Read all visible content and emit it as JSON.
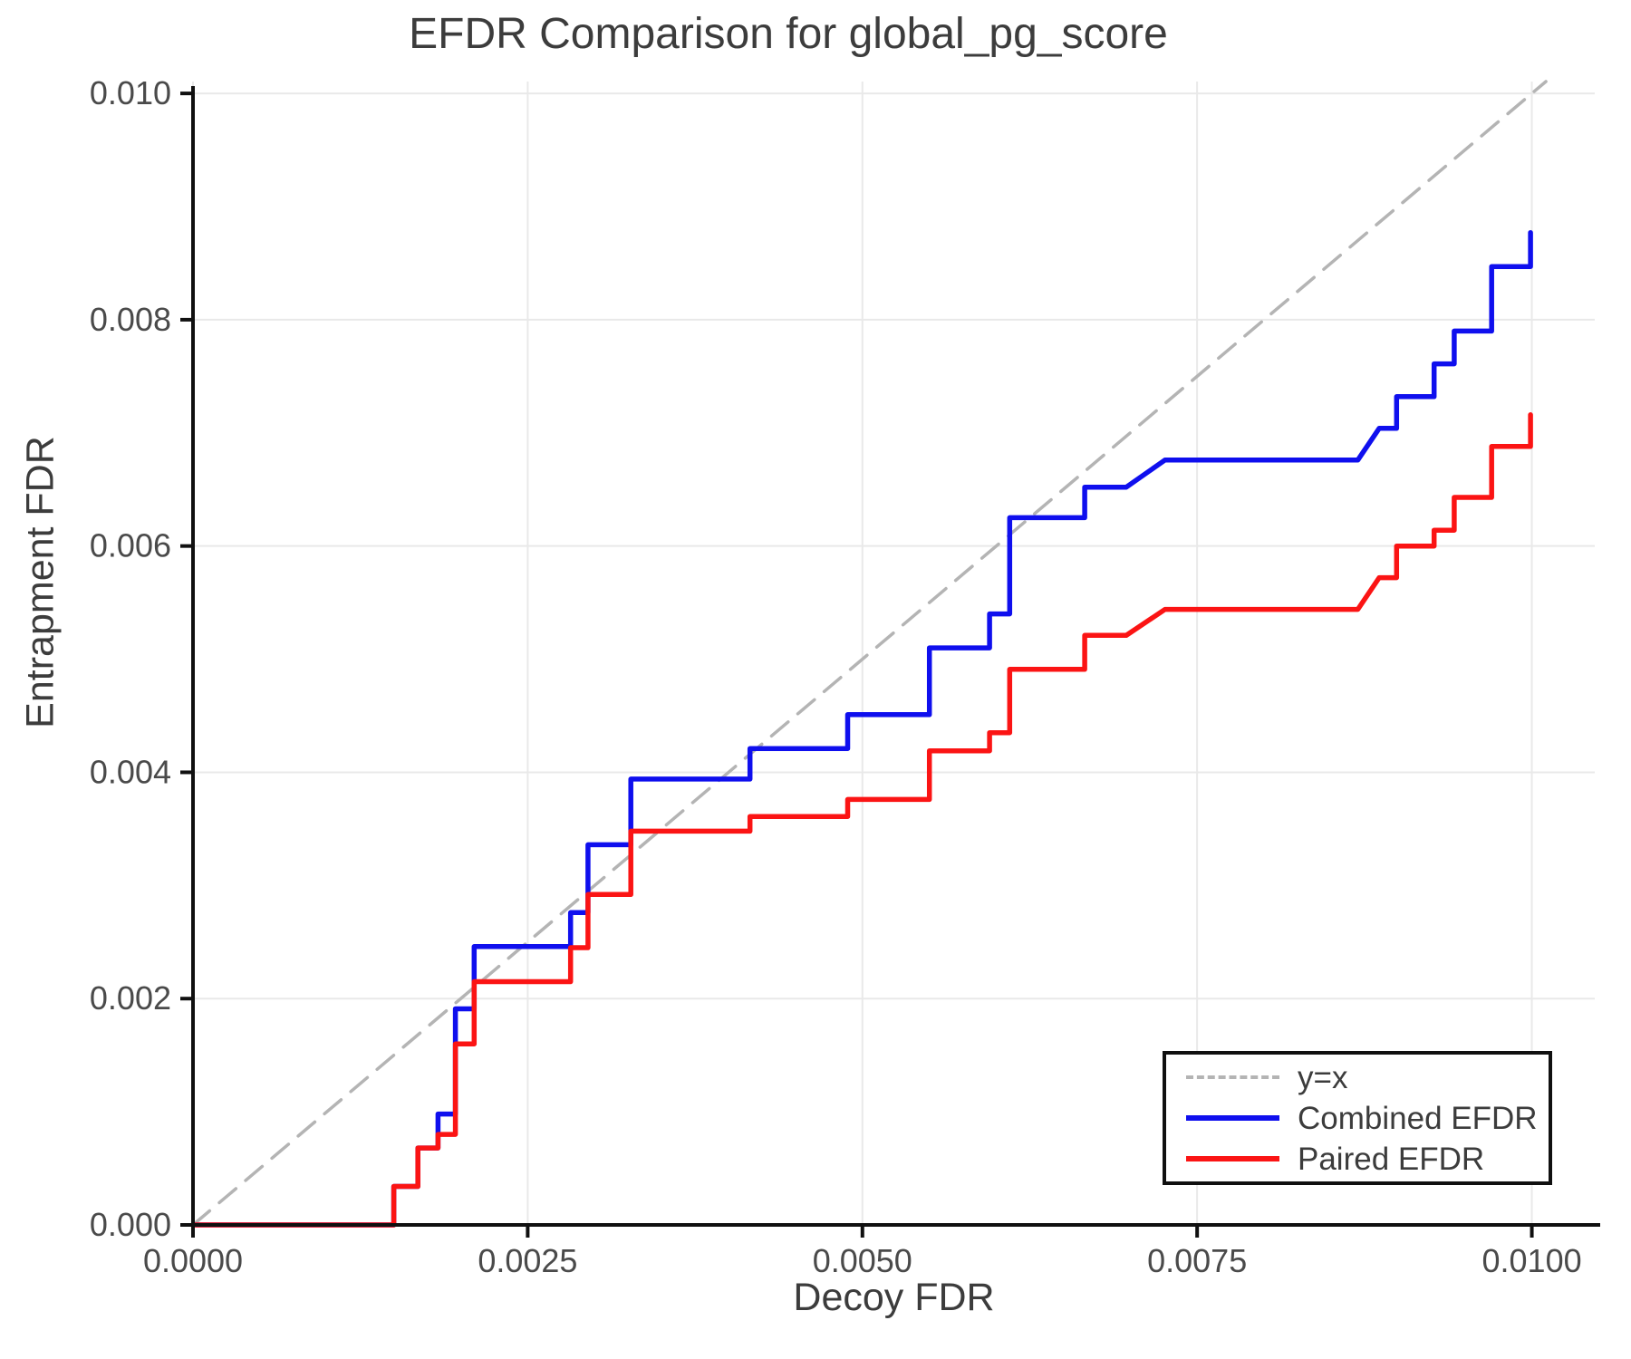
{
  "chart_data": {
    "type": "line",
    "title": "EFDR Comparison for global_pg_score",
    "xlabel": "Decoy FDR",
    "ylabel": "Entrapment FDR",
    "xlim": [
      0,
      0.01047
    ],
    "ylim": [
      0,
      0.010105
    ],
    "grid": true,
    "legend_position": "lower right",
    "xticks": {
      "values": [
        0.0,
        0.0025,
        0.005,
        0.0075,
        0.01
      ],
      "labels": [
        "0.0000",
        "0.0025",
        "0.0050",
        "0.0075",
        "0.0100"
      ]
    },
    "yticks": {
      "values": [
        0.0,
        0.002,
        0.004,
        0.006,
        0.008,
        0.01
      ],
      "labels": [
        "0.000",
        "0.002",
        "0.004",
        "0.006",
        "0.008",
        "0.010"
      ]
    },
    "series": [
      {
        "name": "y=x",
        "style": "dashed",
        "color": "#b4b4b4",
        "width": 3.5,
        "points": [
          [
            0,
            0
          ],
          [
            0.010105,
            0.010105
          ]
        ]
      },
      {
        "name": "Combined EFDR",
        "style": "solid",
        "color": "#0f0fee",
        "width": 5.5,
        "points": [
          [
            0,
            0
          ],
          [
            0.0015,
            0
          ],
          [
            0.0015,
            0.00034
          ],
          [
            0.00168,
            0.00034
          ],
          [
            0.00168,
            0.00068
          ],
          [
            0.00183,
            0.00068
          ],
          [
            0.00183,
            0.00098
          ],
          [
            0.00196,
            0.00098
          ],
          [
            0.00196,
            0.00191
          ],
          [
            0.0021,
            0.00191
          ],
          [
            0.0021,
            0.00246
          ],
          [
            0.00282,
            0.00246
          ],
          [
            0.00282,
            0.00276
          ],
          [
            0.00295,
            0.00276
          ],
          [
            0.00295,
            0.00336
          ],
          [
            0.00327,
            0.00336
          ],
          [
            0.00327,
            0.00394
          ],
          [
            0.00416,
            0.00394
          ],
          [
            0.00416,
            0.00421
          ],
          [
            0.00489,
            0.00421
          ],
          [
            0.00489,
            0.00451
          ],
          [
            0.0055,
            0.00451
          ],
          [
            0.0055,
            0.0051
          ],
          [
            0.00595,
            0.0051
          ],
          [
            0.00595,
            0.0054
          ],
          [
            0.0061,
            0.0054
          ],
          [
            0.0061,
            0.00625
          ],
          [
            0.00666,
            0.00625
          ],
          [
            0.00666,
            0.00652
          ],
          [
            0.00697,
            0.00652
          ],
          [
            0.00726,
            0.00676
          ],
          [
            0.0087,
            0.00676
          ],
          [
            0.00886,
            0.00704
          ],
          [
            0.00899,
            0.00704
          ],
          [
            0.00899,
            0.00732
          ],
          [
            0.00927,
            0.00732
          ],
          [
            0.00927,
            0.00761
          ],
          [
            0.00942,
            0.00761
          ],
          [
            0.00942,
            0.0079
          ],
          [
            0.0097,
            0.0079
          ],
          [
            0.0097,
            0.00847
          ],
          [
            0.00999,
            0.00847
          ],
          [
            0.00999,
            0.00877
          ]
        ]
      },
      {
        "name": "Paired EFDR",
        "style": "solid",
        "color": "#fb1414",
        "width": 5.5,
        "points": [
          [
            0,
            0
          ],
          [
            0.0015,
            0
          ],
          [
            0.0015,
            0.00034
          ],
          [
            0.00168,
            0.00034
          ],
          [
            0.00168,
            0.00068
          ],
          [
            0.00183,
            0.00068
          ],
          [
            0.00183,
            0.0008
          ],
          [
            0.00196,
            0.0008
          ],
          [
            0.00196,
            0.0016
          ],
          [
            0.0021,
            0.0016
          ],
          [
            0.0021,
            0.00215
          ],
          [
            0.00282,
            0.00215
          ],
          [
            0.00282,
            0.00245
          ],
          [
            0.00295,
            0.00245
          ],
          [
            0.00295,
            0.00292
          ],
          [
            0.00327,
            0.00292
          ],
          [
            0.00327,
            0.00348
          ],
          [
            0.00416,
            0.00348
          ],
          [
            0.00416,
            0.00361
          ],
          [
            0.00489,
            0.00361
          ],
          [
            0.00489,
            0.00376
          ],
          [
            0.0055,
            0.00376
          ],
          [
            0.0055,
            0.00419
          ],
          [
            0.00595,
            0.00419
          ],
          [
            0.00595,
            0.00435
          ],
          [
            0.0061,
            0.00435
          ],
          [
            0.0061,
            0.00491
          ],
          [
            0.00666,
            0.00491
          ],
          [
            0.00666,
            0.00521
          ],
          [
            0.00697,
            0.00521
          ],
          [
            0.00726,
            0.00544
          ],
          [
            0.0087,
            0.00544
          ],
          [
            0.00886,
            0.00572
          ],
          [
            0.00899,
            0.00572
          ],
          [
            0.00899,
            0.006
          ],
          [
            0.00927,
            0.006
          ],
          [
            0.00927,
            0.00614
          ],
          [
            0.00942,
            0.00614
          ],
          [
            0.00942,
            0.00643
          ],
          [
            0.0097,
            0.00643
          ],
          [
            0.0097,
            0.00688
          ],
          [
            0.00999,
            0.00688
          ],
          [
            0.00999,
            0.00716
          ]
        ]
      }
    ],
    "colors": {
      "grid": "#e9e9e9",
      "spine": "#101010",
      "tick_label": "#4a4a4a",
      "text": "#3c3c3c"
    }
  }
}
